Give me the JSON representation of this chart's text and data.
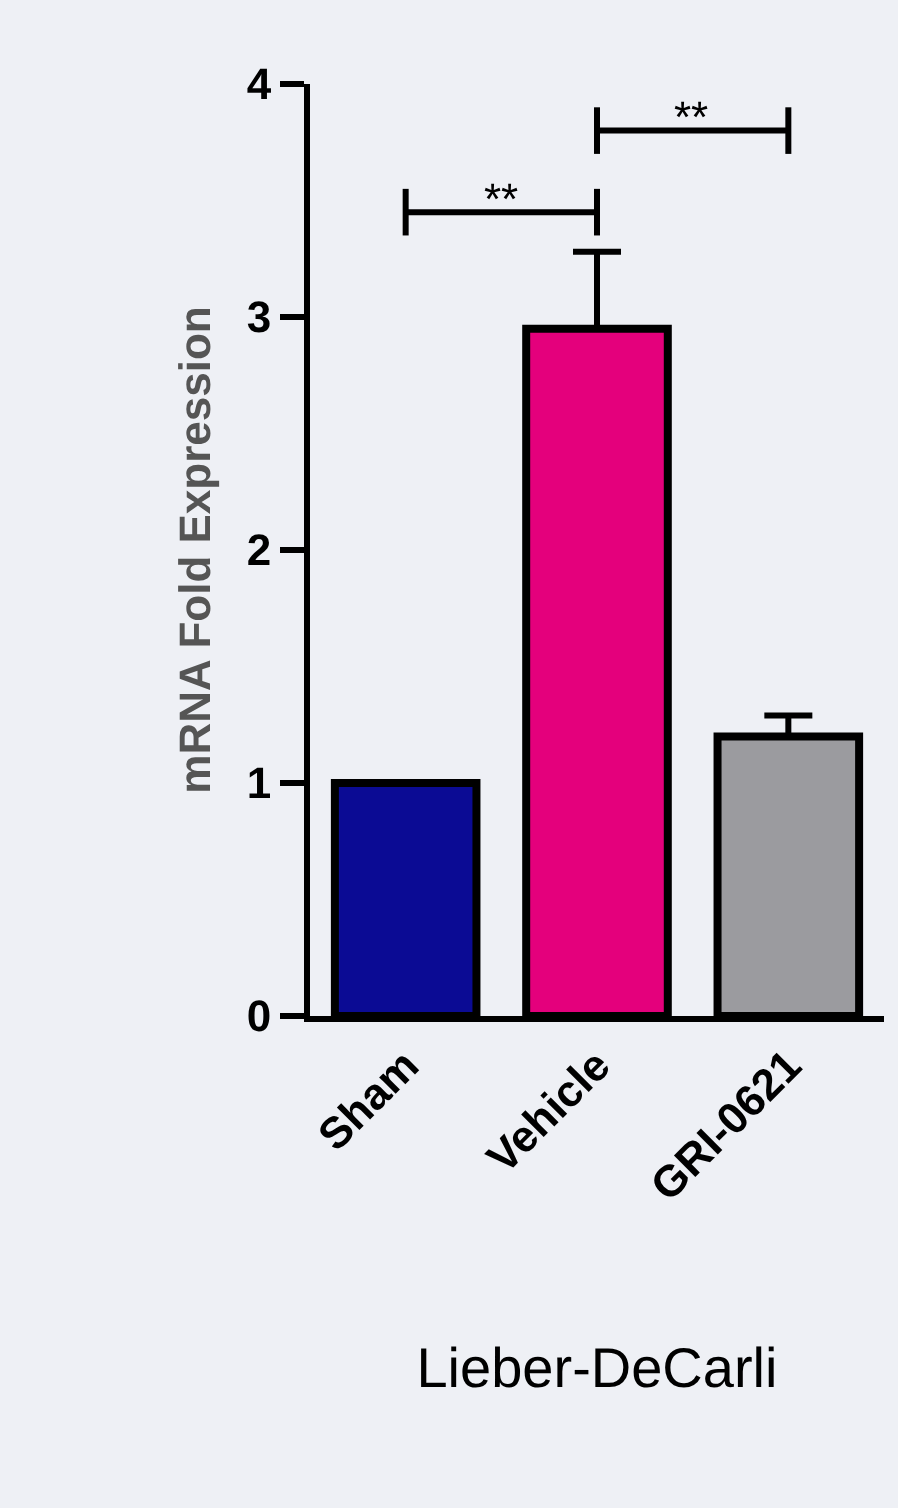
{
  "chart_data": {
    "type": "bar",
    "categories": [
      "Sham",
      "Vehicle",
      "GRI-0621"
    ],
    "values": [
      1.0,
      2.95,
      1.2
    ],
    "colors": [
      "#0b0b94",
      "#e4007c",
      "#9b9b9f"
    ],
    "errors": [
      null,
      [
        2.95,
        3.28
      ],
      [
        1.2,
        1.29
      ]
    ],
    "ylabel": "mRNA Fold Expression",
    "xlabel": "Lieber-DeCarli",
    "ylim": [
      0,
      4
    ],
    "yticks": [
      0,
      1,
      2,
      3,
      4
    ],
    "grid": false,
    "annotations": [
      "**",
      "**"
    ]
  }
}
